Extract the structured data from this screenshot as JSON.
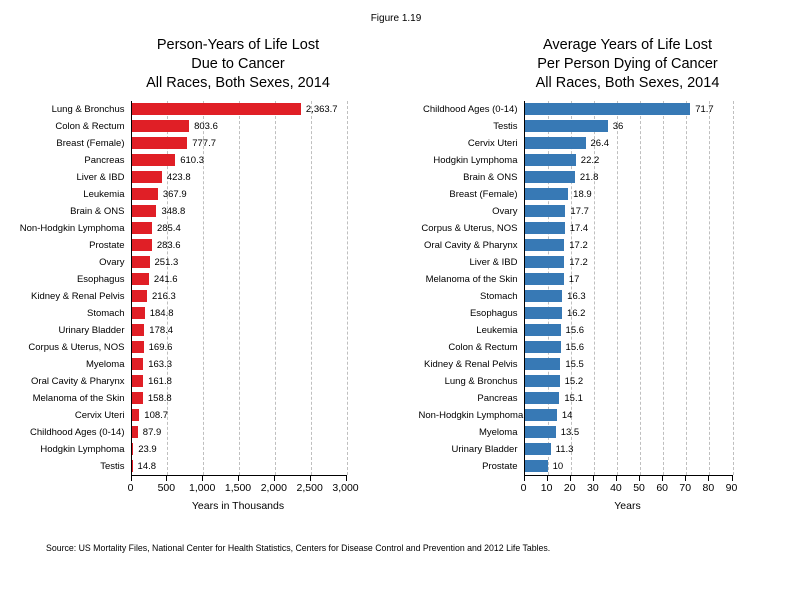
{
  "figure_label": "Figure 1.19",
  "source_note": "Source: US Mortality Files, National Center for Health Statistics, Centers for Disease Control and Prevention and 2012 Life Tables.",
  "colors": {
    "left_bar": "#E01F26",
    "right_bar": "#3779B5",
    "gridline": "#BFBFBF",
    "axis": "#000000"
  },
  "chart_data": [
    {
      "type": "bar",
      "orientation": "horizontal",
      "title": "Person-Years of Life Lost\nDue to Cancer\nAll Races, Both Sexes, 2014",
      "xlabel": "Years in Thousands",
      "xlim": [
        0,
        3000
      ],
      "xticks": [
        0,
        500,
        1000,
        1500,
        2000,
        2500,
        3000
      ],
      "xtick_labels": [
        "0",
        "500",
        "1,000",
        "1,500",
        "2,000",
        "2,500",
        "3,000"
      ],
      "grid": "dashed-vertical",
      "legend": "none",
      "bar_color": "#E01F26",
      "categories": [
        "Lung & Bronchus",
        "Colon & Rectum",
        "Breast (Female)",
        "Pancreas",
        "Liver & IBD",
        "Leukemia",
        "Brain & ONS",
        "Non-Hodgkin Lymphoma",
        "Prostate",
        "Ovary",
        "Esophagus",
        "Kidney & Renal Pelvis",
        "Stomach",
        "Urinary Bladder",
        "Corpus & Uterus, NOS",
        "Myeloma",
        "Oral Cavity & Pharynx",
        "Melanoma of the Skin",
        "Cervix Uteri",
        "Childhood Ages (0-14)",
        "Hodgkin Lymphoma",
        "Testis"
      ],
      "values": [
        2363.7,
        803.6,
        777.7,
        610.3,
        423.8,
        367.9,
        348.8,
        285.4,
        283.6,
        251.3,
        241.6,
        216.3,
        184.8,
        178.4,
        169.6,
        163.3,
        161.8,
        158.8,
        108.7,
        87.9,
        23.9,
        14.8
      ],
      "value_labels": [
        "2,363.7",
        "803.6",
        "777.7",
        "610.3",
        "423.8",
        "367.9",
        "348.8",
        "285.4",
        "283.6",
        "251.3",
        "241.6",
        "216.3",
        "184.8",
        "178.4",
        "169.6",
        "163.3",
        "161.8",
        "158.8",
        "108.7",
        "87.9",
        "23.9",
        "14.8"
      ]
    },
    {
      "type": "bar",
      "orientation": "horizontal",
      "title": "Average Years of Life Lost\nPer Person Dying of Cancer\nAll Races, Both Sexes, 2014",
      "xlabel": "Years",
      "xlim": [
        0,
        90
      ],
      "xticks": [
        0,
        10,
        20,
        30,
        40,
        50,
        60,
        70,
        80,
        90
      ],
      "xtick_labels": [
        "0",
        "10",
        "20",
        "30",
        "40",
        "50",
        "60",
        "70",
        "80",
        "90"
      ],
      "grid": "dashed-vertical",
      "legend": "none",
      "bar_color": "#3779B5",
      "categories": [
        "Childhood Ages (0-14)",
        "Testis",
        "Cervix Uteri",
        "Hodgkin Lymphoma",
        "Brain & ONS",
        "Breast (Female)",
        "Ovary",
        "Corpus & Uterus, NOS",
        "Oral Cavity & Pharynx",
        "Liver & IBD",
        "Melanoma of the Skin",
        "Stomach",
        "Esophagus",
        "Leukemia",
        "Colon & Rectum",
        "Kidney & Renal Pelvis",
        "Lung & Bronchus",
        "Pancreas",
        "Non-Hodgkin Lymphoma",
        "Myeloma",
        "Urinary Bladder",
        "Prostate"
      ],
      "values": [
        71.7,
        36,
        26.4,
        22.2,
        21.8,
        18.9,
        17.7,
        17.4,
        17.2,
        17.2,
        17,
        16.3,
        16.2,
        15.6,
        15.6,
        15.5,
        15.2,
        15.1,
        14,
        13.5,
        11.3,
        10
      ],
      "value_labels": [
        "71.7",
        "36",
        "26.4",
        "22.2",
        "21.8",
        "18.9",
        "17.7",
        "17.4",
        "17.2",
        "17.2",
        "17",
        "16.3",
        "16.2",
        "15.6",
        "15.6",
        "15.5",
        "15.2",
        "15.1",
        "14",
        "13.5",
        "11.3",
        "10"
      ]
    }
  ]
}
